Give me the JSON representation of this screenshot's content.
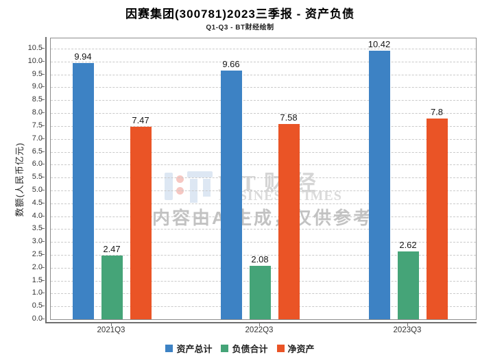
{
  "header": {
    "title": "因赛集团(300781)2023三季报 - 资产负债",
    "subtitle": "Q1-Q3 - BT财经绘制"
  },
  "chart_data": {
    "type": "bar",
    "title": "因赛集团(300781)2023三季报 - 资产负债",
    "subtitle": "Q1-Q3 - BT财经绘制",
    "categories": [
      "2021Q3",
      "2022Q3",
      "2023Q3"
    ],
    "series": [
      {
        "key": "total-assets",
        "name": "资产总计",
        "color": "#3d82c4",
        "values": [
          9.94,
          9.66,
          10.42
        ]
      },
      {
        "key": "total-liabilities",
        "name": "负债合计",
        "color": "#45a478",
        "values": [
          2.47,
          2.08,
          2.62
        ]
      },
      {
        "key": "net-assets",
        "name": "净资产",
        "color": "#ea5426",
        "values": [
          7.47,
          7.58,
          7.8
        ]
      }
    ],
    "xlabel": "",
    "ylabel": "数额(人民币亿元)",
    "ylim": [
      0,
      10.9
    ],
    "y_ticks": [
      0,
      0.5,
      1,
      1.5,
      2,
      2.5,
      3,
      3.5,
      4,
      4.5,
      5,
      5.5,
      6,
      6.5,
      7,
      7.5,
      8,
      8.5,
      9,
      9.5,
      10,
      10.5
    ],
    "grid": true,
    "grid_style": "dashed",
    "legend_position": "bottom"
  },
  "watermark": {
    "brand": "BT财经",
    "brand_en": "BUSINESS TIMES",
    "disclaimer": "内容由AI生成，仅供参考"
  },
  "colors": {
    "background": "#ffffff",
    "plot_border": "#8c8c8c",
    "axis_line": "#6e6e6e",
    "gridline": "#c9c9c9",
    "tick_text": "#333333",
    "bar_blue": "#3d82c4",
    "bar_green": "#45a478",
    "bar_orange": "#ea5426",
    "watermark_blue": "#dde7f3",
    "watermark_pink": "#f6c7c2",
    "watermark_gray": "#d5d5d5"
  }
}
